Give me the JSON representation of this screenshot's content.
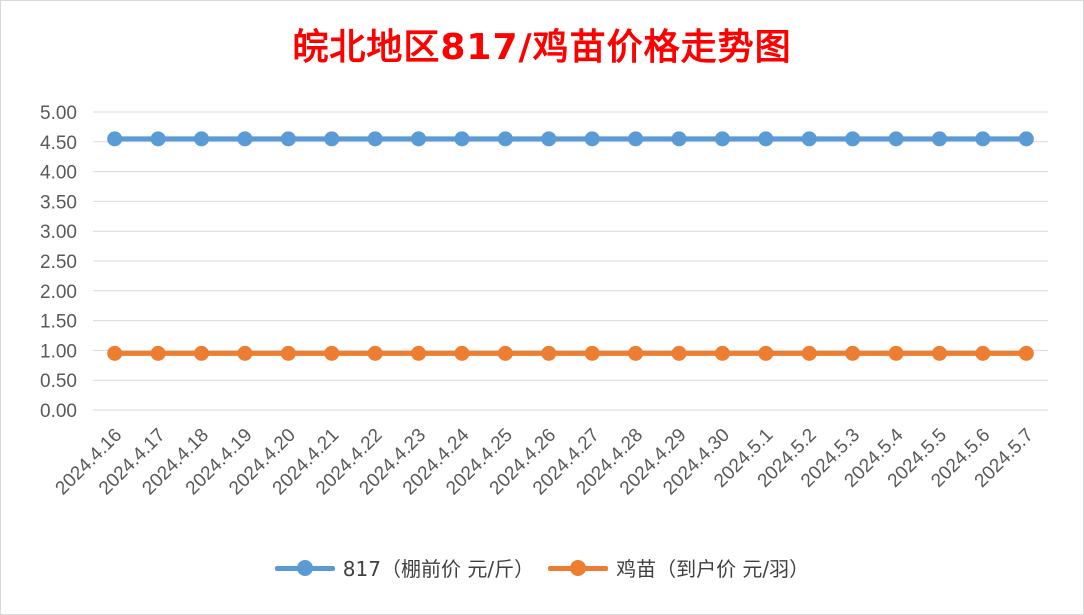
{
  "chart_data": {
    "type": "line",
    "title": "皖北地区817/鸡苗价格走势图",
    "categories": [
      "2024.4.16",
      "2024.4.17",
      "2024.4.18",
      "2024.4.19",
      "2024.4.20",
      "2024.4.21",
      "2024.4.22",
      "2024.4.23",
      "2024.4.24",
      "2024.4.25",
      "2024.4.26",
      "2024.4.27",
      "2024.4.28",
      "2024.4.29",
      "2024.4.30",
      "2024.5.1",
      "2024.5.2",
      "2024.5.3",
      "2024.5.4",
      "2024.5.5",
      "2024.5.6",
      "2024.5.7"
    ],
    "series": [
      {
        "name": "817（棚前价 元/斤）",
        "color": "#5b9bd5",
        "values": [
          4.55,
          4.55,
          4.55,
          4.55,
          4.55,
          4.55,
          4.55,
          4.55,
          4.55,
          4.55,
          4.55,
          4.55,
          4.55,
          4.55,
          4.55,
          4.55,
          4.55,
          4.55,
          4.55,
          4.55,
          4.55,
          4.55
        ]
      },
      {
        "name": "鸡苗（到户价 元/羽）",
        "color": "#ed7d31",
        "values": [
          0.95,
          0.95,
          0.95,
          0.95,
          0.95,
          0.95,
          0.95,
          0.95,
          0.95,
          0.95,
          0.95,
          0.95,
          0.95,
          0.95,
          0.95,
          0.95,
          0.95,
          0.95,
          0.95,
          0.95,
          0.95,
          0.95
        ]
      }
    ],
    "y_ticks": [
      "0.00",
      "0.50",
      "1.00",
      "1.50",
      "2.00",
      "2.50",
      "3.00",
      "3.50",
      "4.00",
      "4.50",
      "5.00"
    ],
    "ylim": [
      0,
      5
    ],
    "xlabel": "",
    "ylabel": "",
    "grid": true,
    "legend_position": "bottom",
    "title_color": "#ff0000"
  }
}
